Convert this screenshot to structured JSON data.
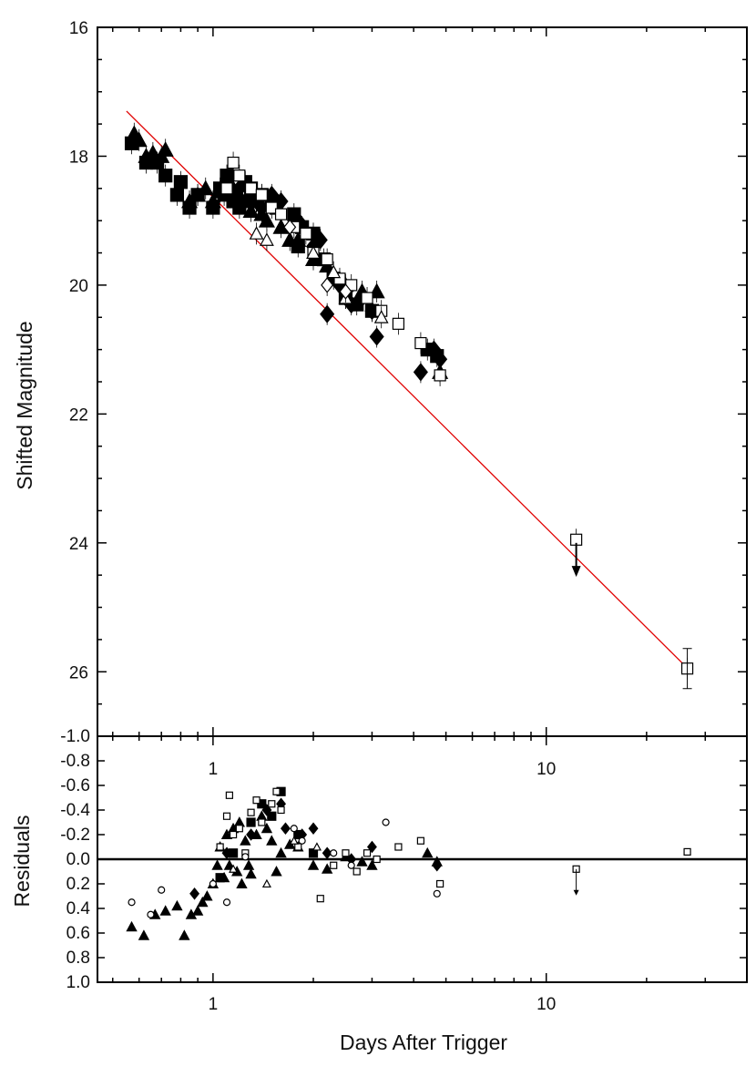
{
  "chart_data": [
    {
      "type": "scatter",
      "panel": "top",
      "ylabel": "Shifted Magnitude",
      "xlabel": "",
      "xscale": "log",
      "xlim": [
        0.45,
        40
      ],
      "ylim": [
        16,
        27
      ],
      "y_inverted": true,
      "y_ticks": [
        16,
        18,
        20,
        22,
        24,
        26
      ],
      "y_tick_labels": [
        "16",
        "18",
        "20",
        "22",
        "24",
        "26"
      ],
      "x_tick_labels_top": [
        "1",
        "10"
      ],
      "fit_line": {
        "color": "#e00000",
        "x": [
          0.55,
          26
        ],
        "y": [
          17.3,
          25.9
        ]
      },
      "series": [
        {
          "marker": "filled-triangle",
          "x": [
            0.58,
            0.6,
            0.63,
            0.66,
            0.7,
            0.72,
            0.85,
            0.9,
            0.95,
            1.0,
            1.05,
            1.08,
            1.12,
            1.15,
            1.2,
            1.25,
            1.3,
            1.35,
            1.4,
            1.45,
            1.6,
            1.7,
            1.8,
            2.0,
            2.2,
            2.5,
            2.8,
            3.1,
            4.8
          ],
          "y": [
            17.65,
            17.75,
            18.0,
            17.95,
            18.0,
            17.9,
            18.7,
            18.6,
            18.5,
            18.7,
            18.55,
            18.6,
            18.4,
            18.5,
            18.6,
            18.7,
            18.85,
            18.7,
            18.9,
            19.0,
            19.1,
            19.3,
            19.3,
            19.6,
            19.7,
            20.0,
            20.1,
            20.1,
            21.35
          ]
        },
        {
          "marker": "filled-square",
          "x": [
            0.57,
            0.63,
            0.68,
            0.72,
            0.78,
            0.8,
            0.85,
            0.9,
            1.0,
            1.05,
            1.1,
            1.15,
            1.2,
            1.25,
            1.3,
            1.35,
            1.4,
            1.5,
            1.55,
            1.75,
            1.8,
            1.85,
            2.0,
            2.15,
            2.3,
            2.5,
            2.7,
            3.0,
            4.4,
            4.7
          ],
          "y": [
            17.8,
            18.1,
            18.1,
            18.3,
            18.6,
            18.4,
            18.8,
            18.6,
            18.8,
            18.5,
            18.3,
            18.7,
            18.8,
            18.4,
            18.5,
            18.7,
            18.6,
            18.7,
            18.8,
            18.9,
            19.4,
            19.1,
            19.2,
            19.6,
            19.9,
            20.2,
            20.3,
            20.4,
            21.0,
            21.1
          ]
        },
        {
          "marker": "filled-diamond",
          "x": [
            1.2,
            1.3,
            1.4,
            1.5,
            1.6,
            1.8,
            2.0,
            2.1,
            2.2,
            2.4,
            2.6,
            2.8,
            3.0,
            3.1,
            4.2,
            4.6,
            4.8
          ],
          "y": [
            18.5,
            18.6,
            18.8,
            18.6,
            18.7,
            19.0,
            19.4,
            19.3,
            20.45,
            20.0,
            20.3,
            20.2,
            20.4,
            20.8,
            21.35,
            21.0,
            21.15
          ]
        },
        {
          "marker": "open-square",
          "x": [
            1.1,
            1.15,
            1.2,
            1.3,
            1.4,
            1.5,
            1.6,
            1.75,
            1.9,
            2.0,
            2.2,
            2.4,
            2.6,
            2.9,
            3.2,
            3.6,
            4.2,
            4.8,
            12.3,
            26.5
          ],
          "y": [
            18.5,
            18.1,
            18.3,
            18.5,
            18.6,
            18.8,
            18.9,
            19.1,
            19.2,
            19.5,
            19.6,
            19.9,
            20.0,
            20.2,
            20.4,
            20.6,
            20.9,
            21.4,
            23.95,
            25.95
          ]
        },
        {
          "marker": "open-triangle",
          "x": [
            1.35,
            1.45,
            2.0,
            2.3,
            2.5,
            3.2
          ],
          "y": [
            19.2,
            19.3,
            19.5,
            19.8,
            20.2,
            20.5
          ]
        },
        {
          "marker": "open-diamond",
          "x": [
            1.7,
            2.2,
            2.5
          ],
          "y": [
            19.1,
            20.0,
            20.1
          ]
        }
      ],
      "upper_limit_arrow": {
        "x": 12.3,
        "y_from": 24.0,
        "y_to": 24.5
      }
    },
    {
      "type": "scatter",
      "panel": "bottom",
      "ylabel": "Residuals",
      "xlabel": "Days After Trigger",
      "xscale": "log",
      "xlim": [
        0.45,
        40
      ],
      "ylim": [
        -1.0,
        1.0
      ],
      "y_inverted": true,
      "y_tick_labels": [
        "-1.0",
        "-0.8",
        "-0.6",
        "-0.4",
        "-0.2",
        "0.0",
        "0.2",
        "0.4",
        "0.6",
        "0.8",
        "1.0"
      ],
      "x_tick_labels": [
        "1",
        "10"
      ],
      "zero_line": 0.0,
      "series": [
        {
          "marker": "filled-triangle",
          "x": [
            0.57,
            0.62,
            0.67,
            0.72,
            0.78,
            0.82,
            0.86,
            0.9,
            0.93,
            0.96,
            1.0,
            1.03,
            1.05,
            1.08,
            1.1,
            1.12,
            1.15,
            1.18,
            1.2,
            1.22,
            1.25,
            1.28,
            1.3,
            1.35,
            1.4,
            1.45,
            1.5,
            1.55,
            1.6,
            1.7,
            1.8,
            2.0,
            2.2,
            2.5,
            2.8,
            3.0,
            4.4,
            4.7
          ],
          "y": [
            0.55,
            0.62,
            0.45,
            0.42,
            0.38,
            0.62,
            0.45,
            0.42,
            0.35,
            0.3,
            0.2,
            0.05,
            -0.1,
            0.15,
            -0.2,
            0.05,
            -0.25,
            0.1,
            -0.3,
            0.2,
            -0.15,
            0.05,
            0.12,
            -0.2,
            -0.35,
            -0.25,
            -0.15,
            0.1,
            -0.05,
            -0.12,
            -0.1,
            0.05,
            0.08,
            -0.02,
            0.02,
            0.05,
            -0.05,
            0.02
          ]
        },
        {
          "marker": "filled-square",
          "x": [
            1.05,
            1.15,
            1.3,
            1.4,
            1.5,
            1.6,
            1.8,
            2.0
          ],
          "y": [
            0.15,
            -0.05,
            -0.3,
            -0.45,
            -0.35,
            -0.55,
            -0.2,
            -0.05
          ]
        },
        {
          "marker": "filled-diamond",
          "x": [
            0.88,
            1.1,
            1.3,
            1.45,
            1.6,
            1.65,
            1.85,
            2.0,
            2.2,
            2.6,
            3.0,
            4.7
          ],
          "y": [
            0.28,
            -0.05,
            -0.2,
            -0.4,
            -0.45,
            -0.25,
            -0.2,
            -0.25,
            -0.05,
            0.0,
            -0.1,
            0.05
          ]
        },
        {
          "marker": "open-square",
          "x": [
            1.05,
            1.1,
            1.12,
            1.15,
            1.2,
            1.25,
            1.3,
            1.35,
            1.4,
            1.5,
            1.55,
            1.6,
            1.8,
            2.1,
            2.3,
            2.5,
            2.7,
            2.9,
            3.1,
            3.6,
            4.2,
            4.8,
            12.3,
            26.5
          ],
          "y": [
            -0.1,
            -0.35,
            -0.52,
            -0.2,
            -0.25,
            -0.05,
            -0.38,
            -0.48,
            -0.3,
            -0.45,
            -0.55,
            -0.4,
            -0.1,
            0.32,
            0.05,
            -0.05,
            0.1,
            -0.05,
            0.0,
            -0.1,
            -0.15,
            0.2,
            0.08,
            -0.06
          ]
        },
        {
          "marker": "open-triangle",
          "x": [
            1.15,
            1.45,
            1.75,
            2.05
          ],
          "y": [
            0.08,
            0.2,
            -0.15,
            -0.1
          ]
        },
        {
          "marker": "open-circle",
          "x": [
            0.57,
            0.65,
            0.7,
            1.0,
            1.1,
            1.25,
            1.75,
            1.85,
            2.3,
            2.6,
            3.3,
            4.7
          ],
          "y": [
            0.35,
            0.45,
            0.25,
            0.2,
            0.35,
            -0.02,
            -0.25,
            -0.15,
            -0.05,
            0.05,
            -0.3,
            0.28
          ]
        }
      ],
      "upper_limit_arrow": {
        "x": 12.3,
        "y_from": 0.08,
        "y_to": 0.28
      }
    }
  ]
}
